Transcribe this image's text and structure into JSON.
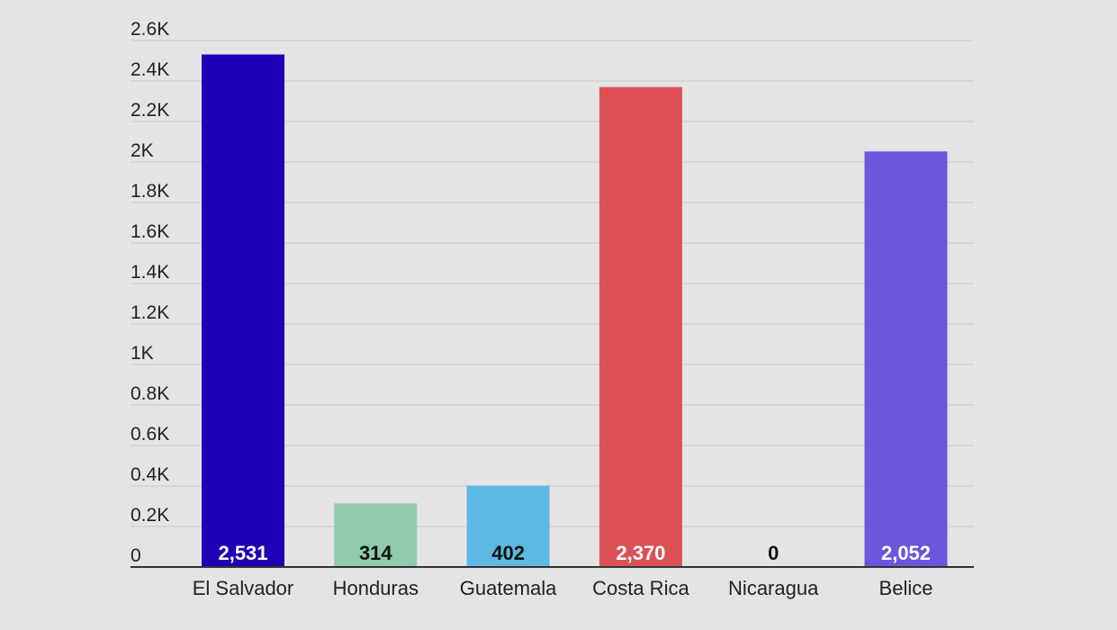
{
  "chart_data": {
    "type": "bar",
    "categories": [
      "El Salvador",
      "Honduras",
      "Guatemala",
      "Costa Rica",
      "Nicaragua",
      "Belice"
    ],
    "values": [
      2531,
      314,
      402,
      2370,
      0,
      2052
    ],
    "value_labels": [
      "2,531",
      "314",
      "402",
      "2,370",
      "0",
      "2,052"
    ],
    "colors": [
      "#1f00b5",
      "#8fcaad",
      "#5db8e2",
      "#dd5156",
      "#cccccc",
      "#6d55dd"
    ],
    "value_label_colors": [
      "#ffffff",
      "#111111",
      "#111111",
      "#ffffff",
      "#111111",
      "#ffffff"
    ],
    "ylim": [
      0,
      2600
    ],
    "yticks": [
      0,
      200,
      400,
      600,
      800,
      1000,
      1200,
      1400,
      1600,
      1800,
      2000,
      2200,
      2400,
      2600
    ],
    "ytick_labels": [
      "0",
      "0.2K",
      "0.4K",
      "0.6K",
      "0.8K",
      "1K",
      "1.2K",
      "1.4K",
      "1.6K",
      "1.8K",
      "2K",
      "2.2K",
      "2.4K",
      "2.6K"
    ],
    "grid": true,
    "title": "",
    "xlabel": "",
    "ylabel": ""
  }
}
